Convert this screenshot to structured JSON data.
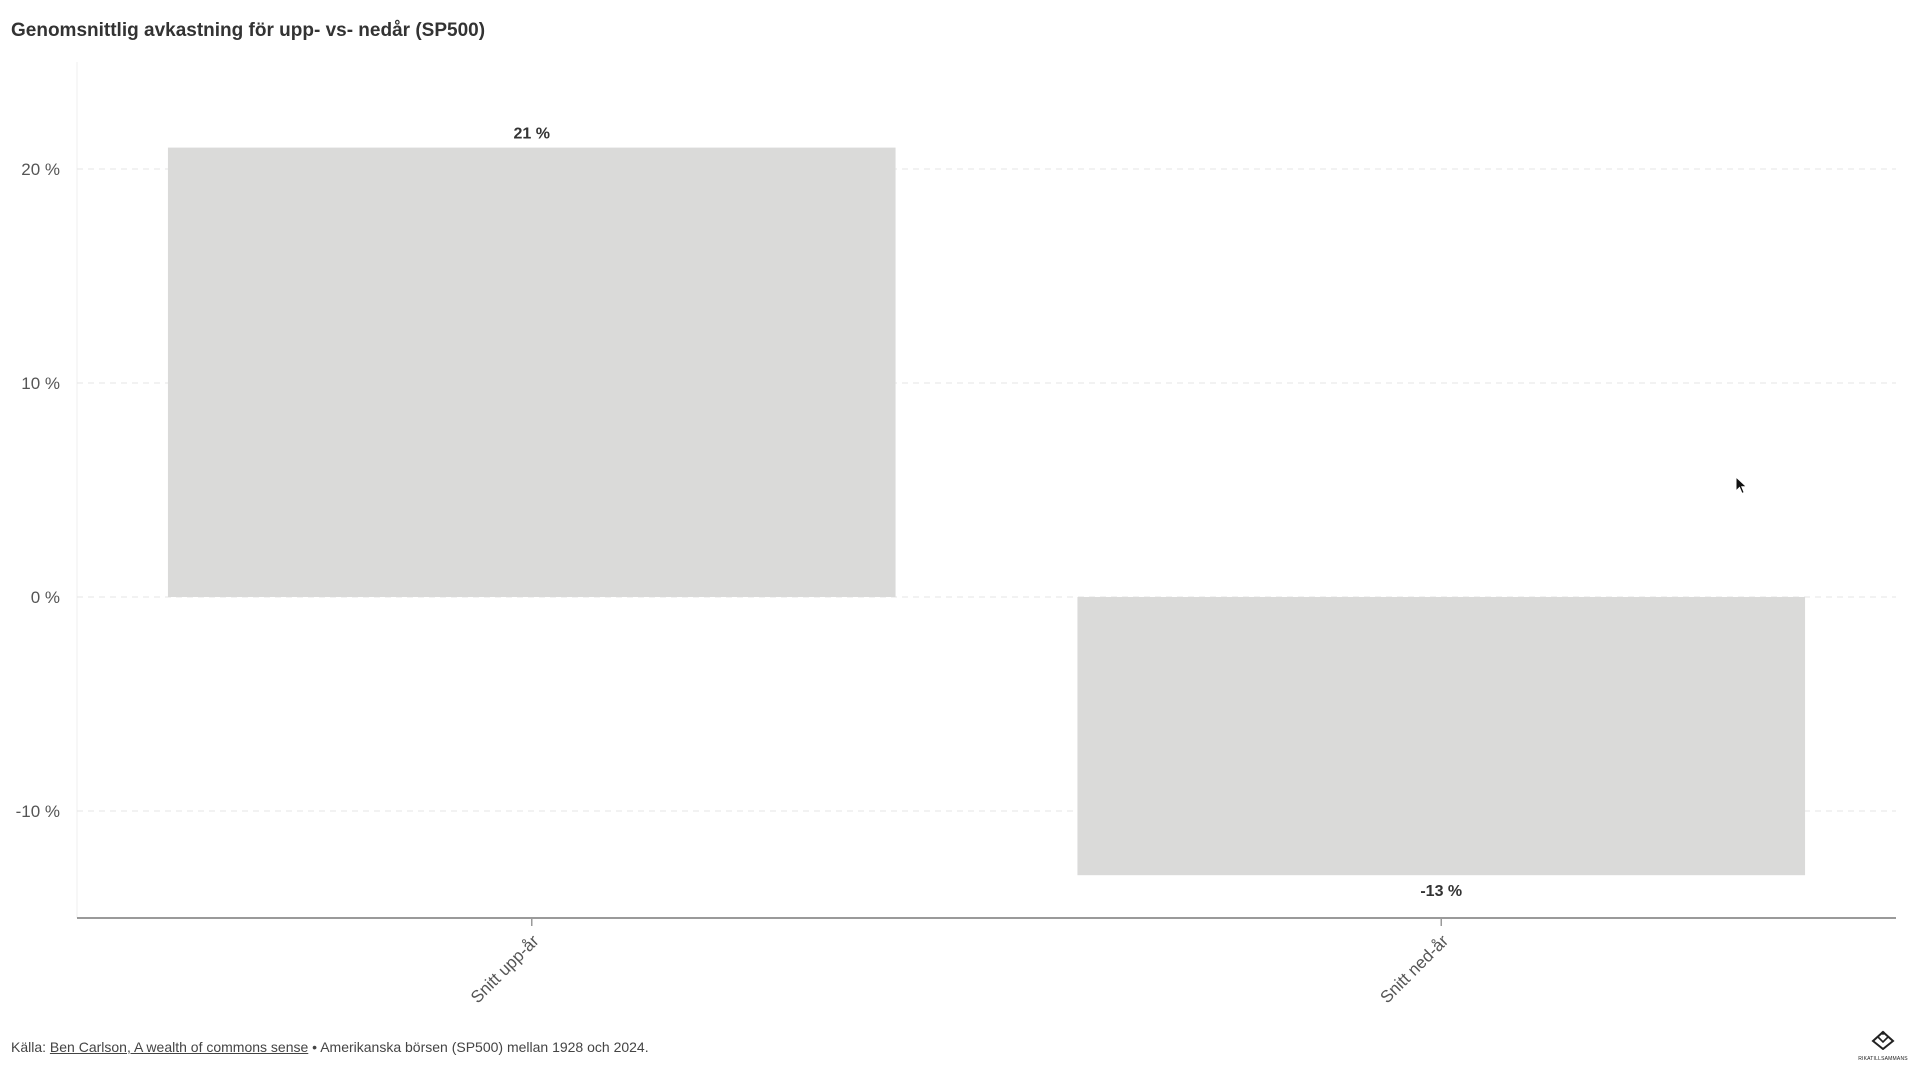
{
  "title": "Genomsnittlig avkastning för upp- vs- nedår (SP500)",
  "footer": {
    "source_prefix": "Källa: ",
    "source_link": "Ben Carlson, A wealth of commons sense",
    "source_suffix": " • Amerikanska börsen (SP500) mellan 1928 och 2024."
  },
  "logo": {
    "text": "RIKATILLSAMMANS"
  },
  "colors": {
    "bar": "#dadad9",
    "grid": "#e6e6e6",
    "axis": "#9a9a9a",
    "text": "#555555"
  },
  "chart_data": {
    "type": "bar",
    "title": "Genomsnittlig avkastning för upp- vs- nedår (SP500)",
    "xlabel": "",
    "ylabel": "",
    "categories": [
      "Snitt upp-år",
      "Snitt ned-år"
    ],
    "values": [
      21,
      -13
    ],
    "value_labels": [
      "21 %",
      "-13 %"
    ],
    "ylim": [
      -15,
      25
    ],
    "yticks": [
      20,
      10,
      0,
      -10
    ],
    "ytick_labels": [
      "20 %",
      "10 %",
      "0 %",
      "-10 %"
    ],
    "grid": true,
    "legend": "none"
  }
}
